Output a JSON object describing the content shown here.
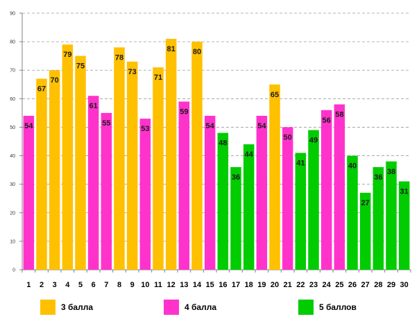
{
  "chart_data": {
    "type": "bar",
    "title": "",
    "xlabel": "",
    "ylabel": "",
    "ylim": [
      0,
      90
    ],
    "yticks": [
      0,
      10,
      20,
      30,
      40,
      50,
      60,
      70,
      80,
      90
    ],
    "grid": true,
    "categories": [
      "1",
      "2",
      "3",
      "4",
      "5",
      "6",
      "7",
      "8",
      "9",
      "10",
      "11",
      "12",
      "13",
      "14",
      "15",
      "16",
      "17",
      "18",
      "19",
      "20",
      "21",
      "22",
      "23",
      "24",
      "25",
      "26",
      "27",
      "28",
      "29",
      "30"
    ],
    "values": [
      54,
      67,
      70,
      79,
      75,
      61,
      55,
      78,
      73,
      53,
      71,
      81,
      59,
      80,
      54,
      48,
      36,
      44,
      54,
      65,
      50,
      41,
      49,
      56,
      58,
      40,
      27,
      36,
      38,
      31
    ],
    "groups": [
      "g4",
      "g3",
      "g3",
      "g3",
      "g3",
      "g4",
      "g4",
      "g3",
      "g3",
      "g4",
      "g3",
      "g3",
      "g4",
      "g3",
      "g4",
      "g5",
      "g5",
      "g5",
      "g4",
      "g3",
      "g4",
      "g5",
      "g5",
      "g4",
      "g4",
      "g5",
      "g5",
      "g5",
      "g5",
      "g5"
    ],
    "legend": [
      {
        "id": "g3",
        "label": "3 балла",
        "color": "#ffc000"
      },
      {
        "id": "g4",
        "label": "4 балла",
        "color": "#ff33cc"
      },
      {
        "id": "g5",
        "label": "5 баллов",
        "color": "#00cc00"
      }
    ],
    "legend_position": "bottom"
  }
}
